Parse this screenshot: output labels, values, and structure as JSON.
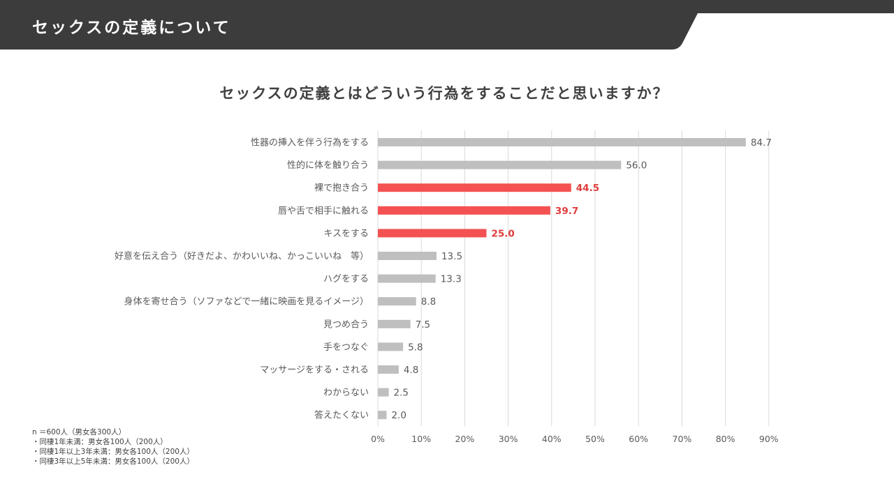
{
  "header": {
    "title": "セックスの定義について"
  },
  "colors": {
    "banner": "#3c3c3c",
    "bar_default": "#bfbfbf",
    "bar_highlight": "#f45252",
    "label_highlight": "#e03c3c",
    "grid": "#d9d9d9"
  },
  "chart_data": {
    "type": "bar",
    "orientation": "horizontal",
    "title": "セックスの定義とはどういう行為をすることだと思いますか？",
    "categories": [
      "性器の挿入を伴う行為をする",
      "性的に体を触り合う",
      "裸で抱き合う",
      "唇や舌で相手に触れる",
      "キスをする",
      "好意を伝え合う（好きだよ、かわいいね、かっこいいね　等）",
      "ハグをする",
      "身体を寄せ合う（ソファなどで一緒に映画を見るイメージ）",
      "見つめ合う",
      "手をつなぐ",
      "マッサージをする・される",
      "わからない",
      "答えたくない"
    ],
    "values": [
      84.7,
      56.0,
      44.5,
      39.7,
      25.0,
      13.5,
      13.3,
      8.8,
      7.5,
      5.8,
      4.8,
      2.5,
      2.0
    ],
    "value_labels": [
      "84.7",
      "56.0",
      "44.5",
      "39.7",
      "25.0",
      "13.5",
      "13.3",
      "8.8",
      "7.5",
      "5.8",
      "4.8",
      "2.5",
      "2.0"
    ],
    "highlighted": [
      false,
      false,
      true,
      true,
      true,
      false,
      false,
      false,
      false,
      false,
      false,
      false,
      false
    ],
    "xlim": [
      0,
      90
    ],
    "xticks": [
      "0%",
      "10%",
      "20%",
      "30%",
      "40%",
      "50%",
      "60%",
      "70%",
      "80%",
      "90%"
    ],
    "grid": true,
    "legend": "none"
  },
  "notes": [
    "n ＝600人（男女各300人）",
    "・同棲1年未満：男女各100人（200人）",
    "・同棲1年以上3年未満：男女各100人（200人）",
    "・同棲3年以上5年未満：男女各100人（200人）"
  ]
}
